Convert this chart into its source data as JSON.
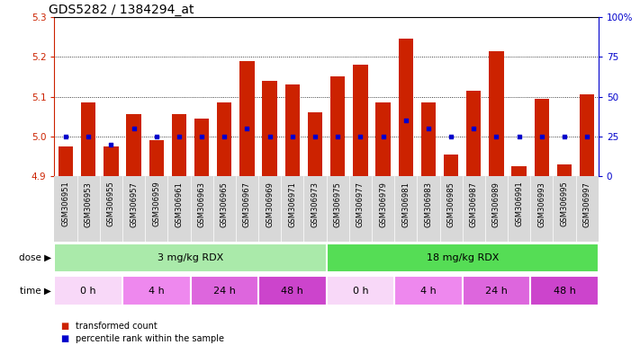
{
  "title": "GDS5282 / 1384294_at",
  "samples": [
    "GSM306951",
    "GSM306953",
    "GSM306955",
    "GSM306957",
    "GSM306959",
    "GSM306961",
    "GSM306963",
    "GSM306965",
    "GSM306967",
    "GSM306969",
    "GSM306971",
    "GSM306973",
    "GSM306975",
    "GSM306977",
    "GSM306979",
    "GSM306981",
    "GSM306983",
    "GSM306985",
    "GSM306987",
    "GSM306989",
    "GSM306991",
    "GSM306993",
    "GSM306995",
    "GSM306997"
  ],
  "bar_values": [
    4.975,
    5.085,
    4.975,
    5.055,
    4.99,
    5.055,
    5.045,
    5.085,
    5.19,
    5.14,
    5.13,
    5.06,
    5.15,
    5.18,
    5.085,
    5.245,
    5.085,
    4.955,
    5.115,
    5.215,
    4.925,
    5.095,
    4.93,
    5.105
  ],
  "percentile_pct": [
    25,
    25,
    20,
    30,
    25,
    25,
    25,
    25,
    30,
    25,
    25,
    25,
    25,
    25,
    25,
    35,
    30,
    25,
    30,
    25,
    25,
    25,
    25,
    25
  ],
  "bar_bottom": 4.9,
  "ylim_left": [
    4.9,
    5.3
  ],
  "ylim_right": [
    0,
    100
  ],
  "yticks_left": [
    4.9,
    5.0,
    5.1,
    5.2,
    5.3
  ],
  "yticks_right": [
    0,
    25,
    50,
    75,
    100
  ],
  "ytick_labels_right": [
    "0",
    "25",
    "50",
    "75",
    "100%"
  ],
  "grid_lines": [
    5.0,
    5.1,
    5.2
  ],
  "bar_color": "#cc2200",
  "dot_color": "#0000cc",
  "label_bg_color": "#d8d8d8",
  "dose_groups": [
    {
      "label": "3 mg/kg RDX",
      "start": 0,
      "end": 12,
      "color": "#aaeaaa"
    },
    {
      "label": "18 mg/kg RDX",
      "start": 12,
      "end": 24,
      "color": "#55dd55"
    }
  ],
  "time_groups": [
    {
      "label": "0 h",
      "start": 0,
      "end": 3,
      "color": "#f8d8f8"
    },
    {
      "label": "4 h",
      "start": 3,
      "end": 6,
      "color": "#ee88ee"
    },
    {
      "label": "24 h",
      "start": 6,
      "end": 9,
      "color": "#dd66dd"
    },
    {
      "label": "48 h",
      "start": 9,
      "end": 12,
      "color": "#cc44cc"
    },
    {
      "label": "0 h",
      "start": 12,
      "end": 15,
      "color": "#f8d8f8"
    },
    {
      "label": "4 h",
      "start": 15,
      "end": 18,
      "color": "#ee88ee"
    },
    {
      "label": "24 h",
      "start": 18,
      "end": 21,
      "color": "#dd66dd"
    },
    {
      "label": "48 h",
      "start": 21,
      "end": 24,
      "color": "#cc44cc"
    }
  ],
  "legend_items": [
    {
      "label": "transformed count",
      "color": "#cc2200"
    },
    {
      "label": "percentile rank within the sample",
      "color": "#0000cc"
    }
  ],
  "bar_color_axis": "#cc2200",
  "dot_color_axis": "#0000cc",
  "title_fontsize": 10,
  "bar_width": 0.65,
  "background_color": "#ffffff"
}
